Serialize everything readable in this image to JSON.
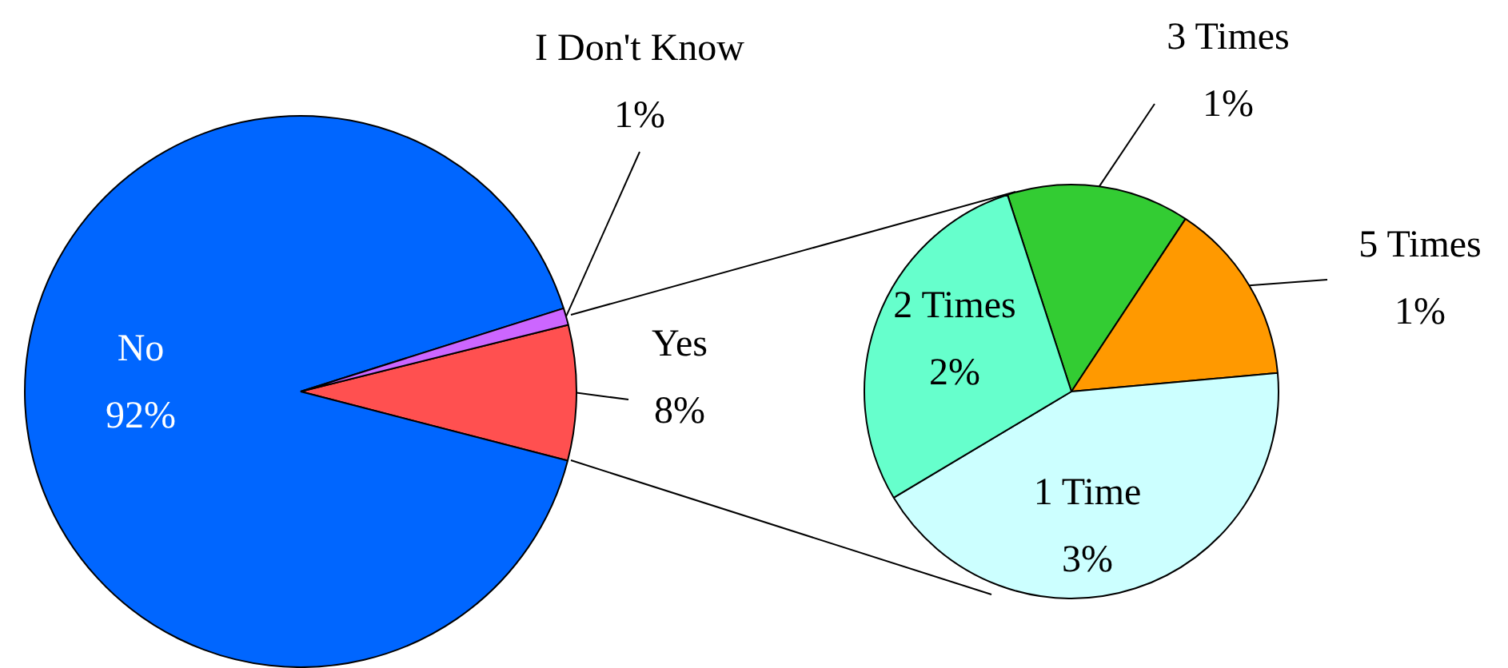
{
  "chart_data": [
    {
      "type": "pie",
      "categories": [
        "Yes",
        "No",
        "I Don't Know"
      ],
      "values": [
        8,
        92,
        1
      ],
      "colors": [
        "#ff5050",
        "#0066ff",
        "#cc66ff"
      ],
      "value_labels": [
        "8%",
        "92%",
        "1%"
      ]
    },
    {
      "type": "pie",
      "categories": [
        "3 Times",
        "5 Times",
        "1 Time",
        "2 Times"
      ],
      "values": [
        1,
        1,
        3,
        2
      ],
      "colors": [
        "#33cc33",
        "#ff9900",
        "#ccffff",
        "#66ffcc"
      ],
      "value_labels": [
        "1%",
        "1%",
        "3%",
        "2%"
      ]
    }
  ]
}
